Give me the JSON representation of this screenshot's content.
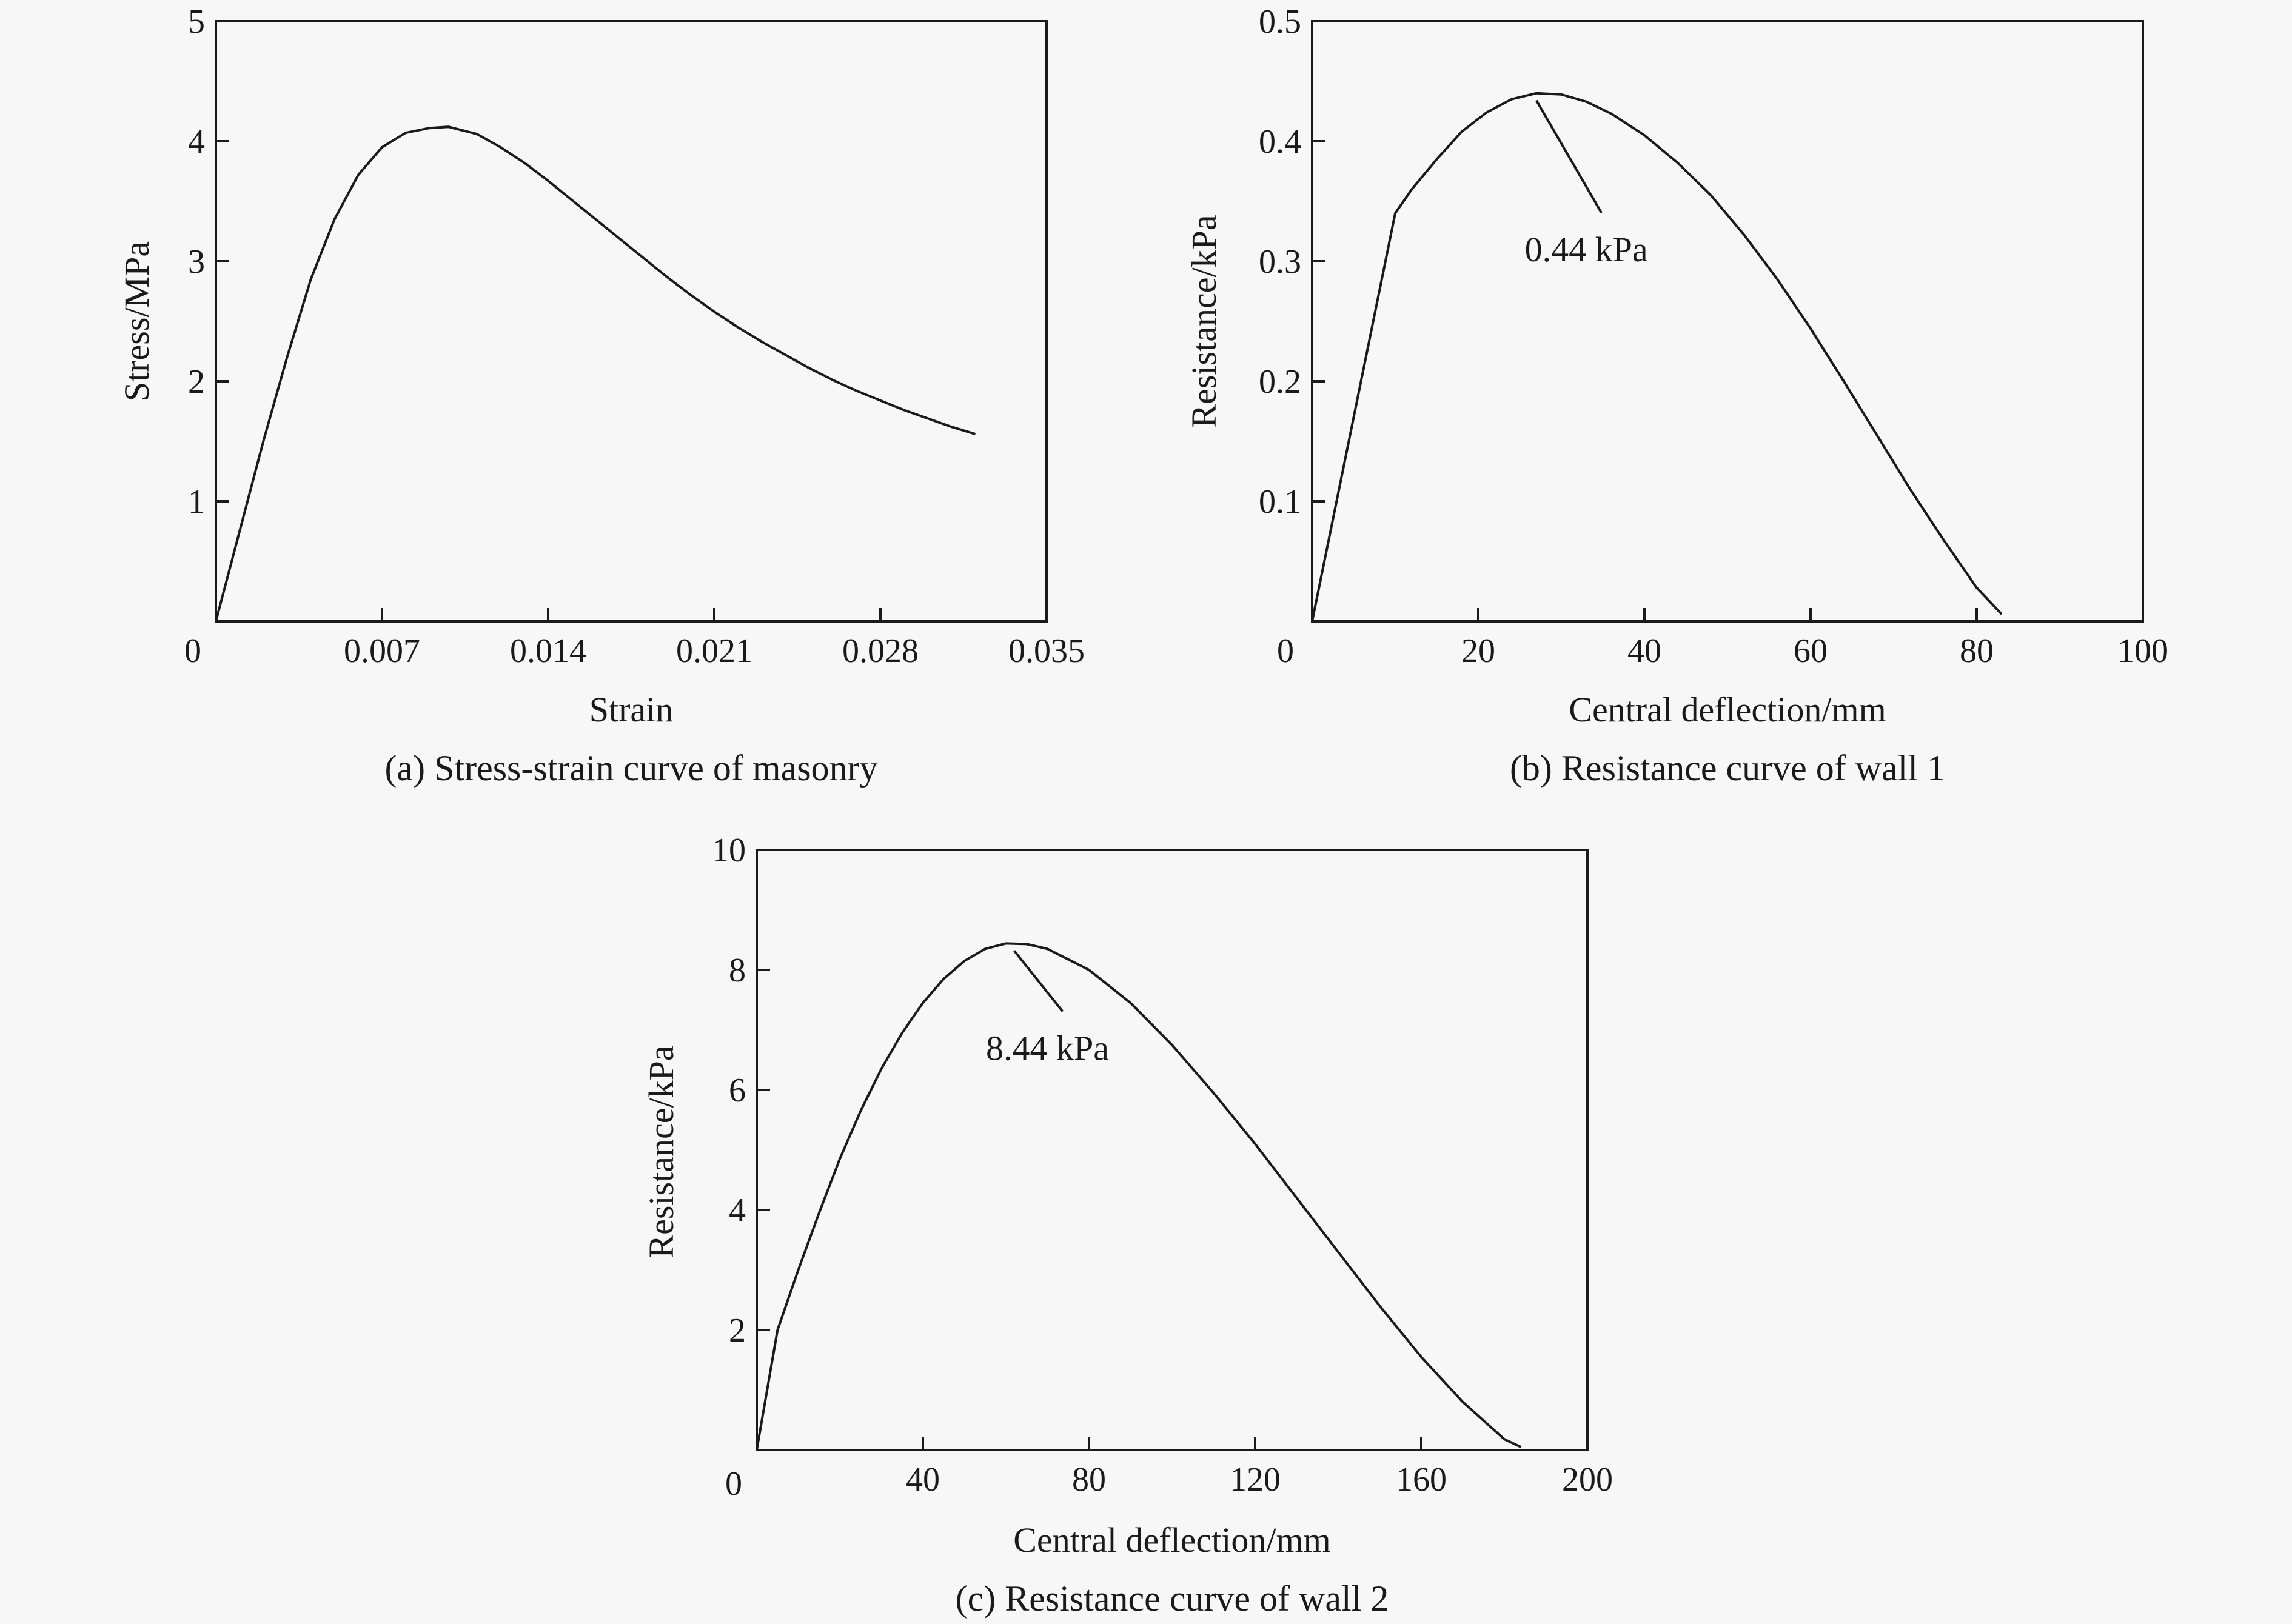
{
  "chart_data": [
    {
      "id": "a",
      "type": "line",
      "caption": "(a) Stress-strain curve of masonry",
      "xlabel": "Strain",
      "ylabel": "Stress/MPa",
      "xlim": [
        0,
        0.035
      ],
      "ylim": [
        0,
        5
      ],
      "x_ticks": [
        "0",
        "0.007",
        "0.014",
        "0.021",
        "0.028",
        "0.035"
      ],
      "y_ticks": [
        "1",
        "2",
        "3",
        "4",
        "5"
      ],
      "series": [
        {
          "x": [
            0,
            0.001,
            0.002,
            0.003,
            0.004,
            0.005,
            0.006,
            0.007,
            0.008,
            0.009,
            0.0098,
            0.011,
            0.012,
            0.013,
            0.014,
            0.015,
            0.016,
            0.017,
            0.018,
            0.019,
            0.02,
            0.021,
            0.022,
            0.023,
            0.024,
            0.025,
            0.026,
            0.027,
            0.028,
            0.029,
            0.03,
            0.031,
            0.032
          ],
          "y": [
            0,
            0.75,
            1.5,
            2.2,
            2.85,
            3.35,
            3.72,
            3.95,
            4.07,
            4.11,
            4.12,
            4.06,
            3.95,
            3.82,
            3.67,
            3.51,
            3.35,
            3.19,
            3.03,
            2.87,
            2.72,
            2.58,
            2.45,
            2.33,
            2.22,
            2.11,
            2.01,
            1.92,
            1.84,
            1.76,
            1.69,
            1.62,
            1.56
          ]
        }
      ],
      "grid": false,
      "annotations": []
    },
    {
      "id": "b",
      "type": "line",
      "caption": "(b) Resistance curve of  wall 1",
      "xlabel": "Central deflection/mm",
      "ylabel": "Resistance/kPa",
      "xlim": [
        0,
        100
      ],
      "ylim": [
        0,
        0.5
      ],
      "x_ticks": [
        "0",
        "20",
        "40",
        "60",
        "80",
        "100"
      ],
      "y_ticks": [
        "0.1",
        "0.2",
        "0.3",
        "0.4",
        "0.5"
      ],
      "series": [
        {
          "x": [
            0,
            10,
            12,
            15,
            18,
            21,
            24,
            27,
            30,
            33,
            36,
            40,
            44,
            48,
            52,
            56,
            60,
            64,
            68,
            72,
            76,
            80,
            83
          ],
          "y": [
            0,
            0.34,
            0.36,
            0.385,
            0.408,
            0.424,
            0.435,
            0.44,
            0.439,
            0.433,
            0.423,
            0.405,
            0.382,
            0.355,
            0.322,
            0.285,
            0.244,
            0.2,
            0.155,
            0.11,
            0.068,
            0.028,
            0.006
          ]
        }
      ],
      "grid": false,
      "annotations": [
        {
          "text": "0.44 kPa",
          "x": 27,
          "y": 0.44,
          "text_x": 33,
          "text_y": 0.3
        }
      ]
    },
    {
      "id": "c",
      "type": "line",
      "caption": "(c) Resistance curve of  wall 2",
      "xlabel": "Central deflection/mm",
      "ylabel": "Resistance/kPa",
      "xlim": [
        0,
        200
      ],
      "ylim": [
        0,
        10
      ],
      "x_ticks": [
        "0",
        "40",
        "80",
        "120",
        "160",
        "200"
      ],
      "y_ticks": [
        "2",
        "4",
        "6",
        "8",
        "10"
      ],
      "series": [
        {
          "x": [
            0,
            5,
            10,
            15,
            20,
            25,
            30,
            35,
            40,
            45,
            50,
            55,
            60,
            65,
            70,
            80,
            90,
            100,
            110,
            120,
            130,
            140,
            150,
            160,
            170,
            180,
            184
          ],
          "y": [
            0,
            2.0,
            3.0,
            3.95,
            4.85,
            5.65,
            6.35,
            6.95,
            7.45,
            7.85,
            8.15,
            8.35,
            8.44,
            8.43,
            8.35,
            8.0,
            7.45,
            6.75,
            5.95,
            5.1,
            4.2,
            3.3,
            2.4,
            1.55,
            0.8,
            0.18,
            0.05
          ]
        }
      ],
      "grid": false,
      "annotations": [
        {
          "text": "8.44 kPa",
          "x": 62,
          "y": 8.44,
          "text_x": 70,
          "text_y": 6.5
        }
      ]
    }
  ]
}
